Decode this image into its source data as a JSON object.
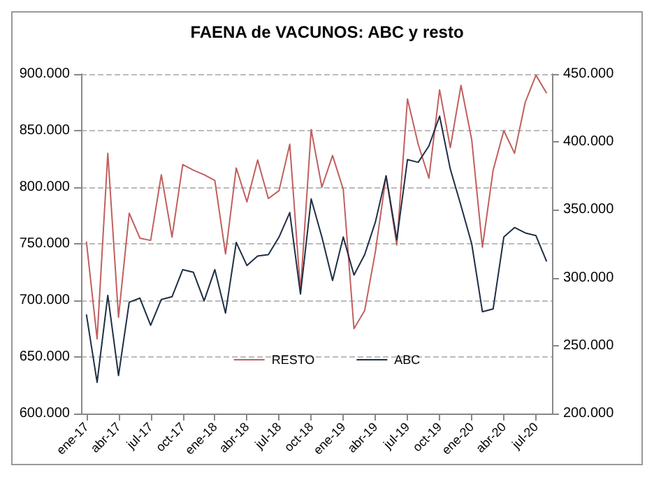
{
  "chart_data": {
    "type": "line",
    "title": "FAENA de VACUNOS: ABC y resto",
    "categories": [
      "ene-17",
      null,
      null,
      "abr-17",
      null,
      null,
      "jul-17",
      null,
      null,
      "oct-17",
      null,
      null,
      "ene-18",
      null,
      null,
      "abr-18",
      null,
      null,
      "jul-18",
      null,
      null,
      "oct-18",
      null,
      null,
      "ene-19",
      null,
      null,
      "abr-19",
      null,
      null,
      "jul-19",
      null,
      null,
      "oct-19",
      null,
      null,
      "ene-20",
      null,
      null,
      "abr-20",
      null,
      null,
      "jul-20",
      null
    ],
    "series": [
      {
        "name": "RESTO",
        "color": "#c0605e",
        "values": [
          752000,
          666000,
          830000,
          685000,
          777000,
          755000,
          753000,
          811000,
          756000,
          820000,
          815000,
          811000,
          806000,
          741000,
          817000,
          787000,
          824000,
          790000,
          797000,
          838000,
          708000,
          851000,
          800000,
          828000,
          798000,
          675000,
          691000,
          743000,
          810000,
          749000,
          878000,
          838000,
          808000,
          886000,
          835000,
          890000,
          842000,
          747000,
          815000,
          850000,
          830000,
          875000,
          899000,
          883000
        ]
      },
      {
        "name": "ABC",
        "color": "#1f2f45",
        "axis": "y2",
        "values": [
          273000,
          223000,
          287000,
          228000,
          282000,
          285000,
          265000,
          284000,
          286000,
          306000,
          304000,
          283000,
          306000,
          274000,
          326000,
          309000,
          316000,
          317000,
          330000,
          348000,
          288000,
          358000,
          330000,
          298000,
          330000,
          302000,
          317000,
          341000,
          375000,
          328000,
          387000,
          385000,
          397000,
          419000,
          380000,
          353000,
          325000,
          275000,
          277000,
          330000,
          337000,
          333000,
          331000,
          312000
        ]
      }
    ],
    "ylim": [
      600000,
      900000
    ],
    "yticks": [
      {
        "value": 600000,
        "label": "600.000"
      },
      {
        "value": 650000,
        "label": "650.000"
      },
      {
        "value": 700000,
        "label": "700.000"
      },
      {
        "value": 750000,
        "label": "750.000"
      },
      {
        "value": 800000,
        "label": "800.000"
      },
      {
        "value": 850000,
        "label": "850.000"
      },
      {
        "value": 900000,
        "label": "900.000"
      }
    ],
    "y2lim": [
      200000,
      450000
    ],
    "y2ticks": [
      {
        "value": 200000,
        "label": "200.000"
      },
      {
        "value": 250000,
        "label": "250.000"
      },
      {
        "value": 300000,
        "label": "300.000"
      },
      {
        "value": 350000,
        "label": "350.000"
      },
      {
        "value": 400000,
        "label": "400.000"
      },
      {
        "value": 450000,
        "label": "450.000"
      }
    ],
    "grid": "y",
    "legend": "bottom",
    "marker": "none",
    "line_style": "solid"
  }
}
